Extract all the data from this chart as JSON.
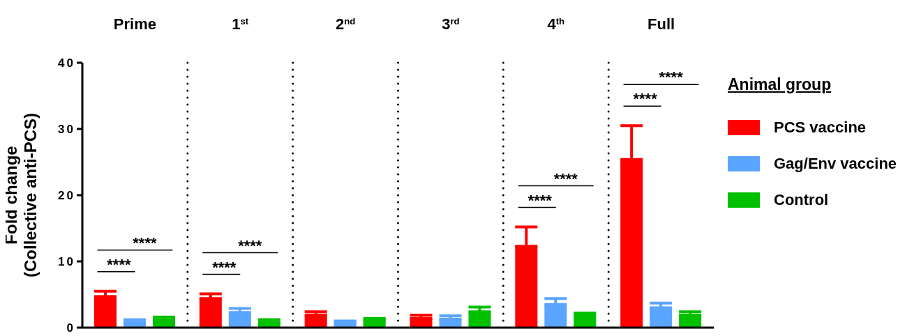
{
  "chart_data": {
    "type": "bar",
    "ylabel": "Fold change\n(Collective anti-PCS)",
    "legend_title": "Animal group",
    "legend": "right",
    "categories": [
      "Prime",
      "1$^{st}$",
      "2$^{nd}$",
      "3$^{rd}$",
      "4$^{th}$",
      "Full"
    ],
    "ylim": [
      0,
      40
    ],
    "yticks": [
      0,
      10,
      20,
      30,
      40
    ],
    "series": [
      {
        "name": "PCS vaccine",
        "color": "#ff0000",
        "values": [
          4.7,
          4.4,
          1.9,
          1.4,
          12.3,
          25.4
        ],
        "errors": [
          [
            4.7,
            5.5
          ],
          [
            4.4,
            5.1
          ],
          [
            1.9,
            2.4
          ],
          [
            1.4,
            1.9
          ],
          [
            12.3,
            15.2
          ],
          [
            25.4,
            30.5
          ]
        ]
      },
      {
        "name": "Gag/Env vaccine",
        "color": "#5aa5ff",
        "values": [
          0.8,
          2.3,
          0.7,
          1.3,
          3.5,
          3.0
        ],
        "errors": [
          [
            0.8,
            1.2
          ],
          [
            2.3,
            2.9
          ],
          [
            0.7,
            1.0
          ],
          [
            1.3,
            1.8
          ],
          [
            3.5,
            4.4
          ],
          [
            3.0,
            3.7
          ]
        ]
      },
      {
        "name": "Control",
        "color": "#00c000",
        "values": [
          1.2,
          0.8,
          1.1,
          2.4,
          1.8,
          1.9
        ],
        "errors": [
          [
            1.2,
            1.6
          ],
          [
            0.8,
            1.2
          ],
          [
            1.1,
            1.4
          ],
          [
            2.4,
            3.1
          ],
          [
            1.8,
            2.2
          ],
          [
            1.9,
            2.4
          ]
        ]
      }
    ],
    "annotations": [
      "****",
      "****",
      "****",
      "****",
      "****",
      "****",
      "****",
      "****"
    ]
  }
}
